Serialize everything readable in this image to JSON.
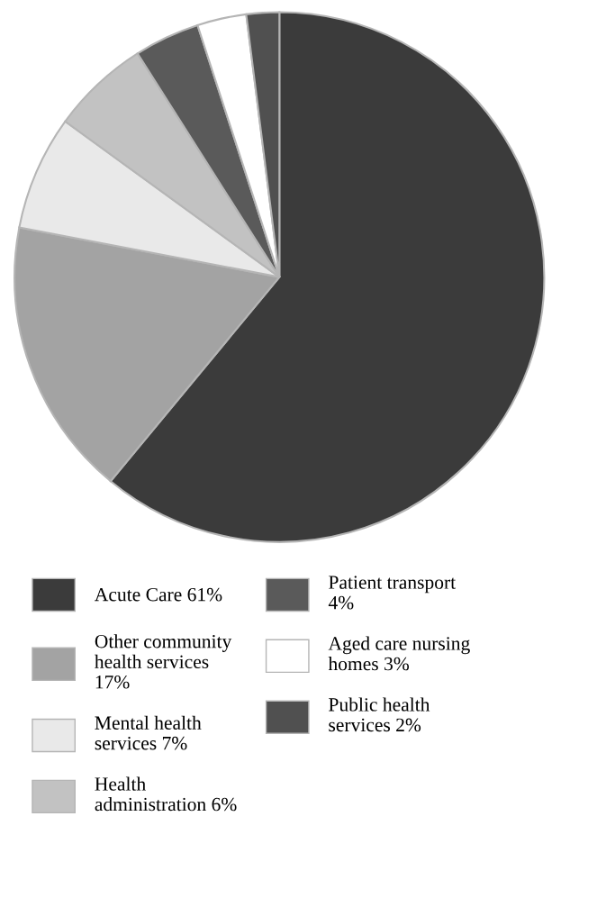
{
  "chart_data": {
    "type": "pie",
    "categories": [
      "Acute Care 61%",
      "Other community\nhealth services\n17%",
      "Mental health\nservices 7%",
      "Health\nadministration 6%",
      "Patient transport\n4%",
      "Aged care nursing\nhomes 3%",
      "Public health\nservices 2%"
    ],
    "values": [
      61,
      17,
      7,
      6,
      4,
      3,
      2
    ],
    "colors": [
      "#3b3b3b",
      "#a3a3a3",
      "#e9e9e9",
      "#c2c2c2",
      "#5a5a5a",
      "#ffffff",
      "#505050"
    ],
    "legend": "bottom"
  }
}
